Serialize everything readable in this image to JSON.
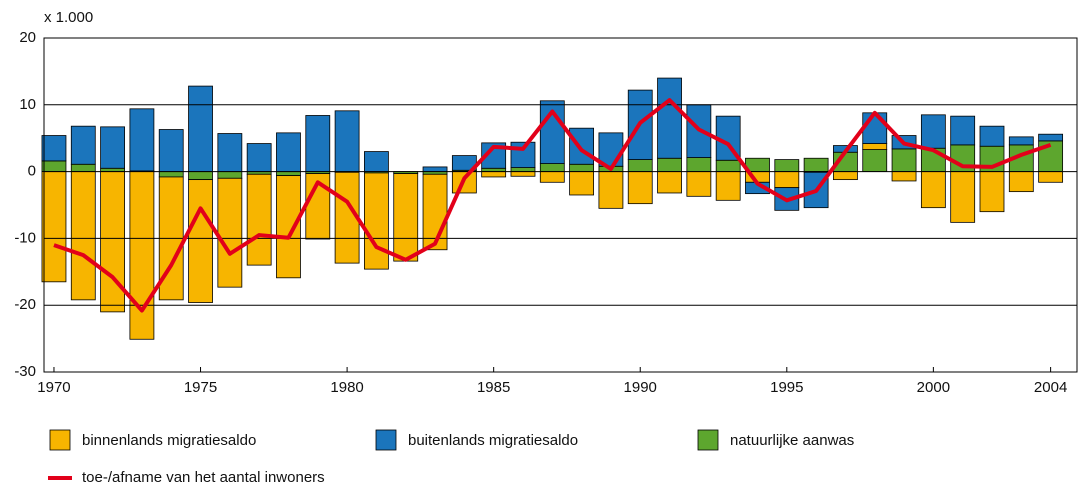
{
  "chart_data": {
    "type": "bar",
    "y_unit_label": "x 1.000",
    "x": [
      1970,
      1971,
      1972,
      1973,
      1974,
      1975,
      1976,
      1977,
      1978,
      1979,
      1980,
      1981,
      1982,
      1983,
      1984,
      1985,
      1986,
      1987,
      1988,
      1989,
      1990,
      1991,
      1992,
      1993,
      1994,
      1995,
      1996,
      1997,
      1998,
      1999,
      2000,
      2001,
      2002,
      2003,
      2004
    ],
    "series": [
      {
        "name": "binnenlands migratiesaldo",
        "color": "#f7b500",
        "values": [
          -16.5,
          -19.2,
          -21,
          -25.1,
          -18.4,
          -18.4,
          -16.3,
          -13.6,
          -15.3,
          -9.8,
          -13.6,
          -14.4,
          -13.1,
          -11.3,
          -3.2,
          -0.8,
          -0.7,
          -1.6,
          -3.5,
          -5.5,
          -4.8,
          -3.2,
          -3.7,
          -4.3,
          -1.6,
          -2.4,
          -0.1,
          -1.2,
          0.9,
          -1.4,
          -5.4,
          -7.6,
          -6,
          -3,
          -1.6
        ]
      },
      {
        "name": "buitenlands migratiesaldo",
        "color": "#1b75bc",
        "values": [
          3.8,
          5.7,
          6.2,
          9.3,
          6.3,
          12.8,
          5.7,
          4.2,
          5.8,
          8.4,
          9.1,
          3,
          0,
          0.7,
          2.2,
          3.8,
          3.8,
          9.4,
          5.4,
          5,
          10.4,
          12,
          7.9,
          6.6,
          -1.7,
          -3.4,
          -5.3,
          1,
          4.6,
          2,
          5,
          4.3,
          3,
          1.2,
          1
        ]
      },
      {
        "name": "natuurlijke aanwas",
        "color": "#5da62e",
        "values": [
          1.6,
          1.1,
          0.5,
          0.1,
          -0.8,
          -1.2,
          -1,
          -0.4,
          -0.6,
          -0.3,
          -0.1,
          -0.2,
          -0.3,
          -0.4,
          0.2,
          0.5,
          0.6,
          1.2,
          1.1,
          0.8,
          1.8,
          2,
          2.1,
          1.7,
          2,
          1.8,
          2,
          2.9,
          3.3,
          3.4,
          3.5,
          4,
          3.8,
          4,
          4.6
        ]
      },
      {
        "name": "toe-/afname van het aantal inwoners",
        "type": "line",
        "color": "#e2001a",
        "values": [
          -11,
          -12.5,
          -15.8,
          -20.8,
          -14,
          -5.5,
          -12.3,
          -9.5,
          -9.9,
          -1.6,
          -4.5,
          -11.3,
          -13.2,
          -10.8,
          -1,
          3.7,
          3.4,
          9,
          3.2,
          0.4,
          7.3,
          10.7,
          6.3,
          4.1,
          -1.8,
          -4.3,
          -2.9,
          3,
          8.8,
          4.2,
          3.2,
          0.8,
          0.7,
          2.5,
          4
        ]
      }
    ],
    "xlim": [
      1969.66,
      2004.9
    ],
    "xticks": [
      1970,
      1975,
      1980,
      1985,
      1990,
      1995,
      2000,
      2004
    ],
    "ylim": [
      -30,
      20
    ],
    "yticks": [
      -30,
      -20,
      -10,
      0,
      10,
      20
    ],
    "grid": true
  }
}
